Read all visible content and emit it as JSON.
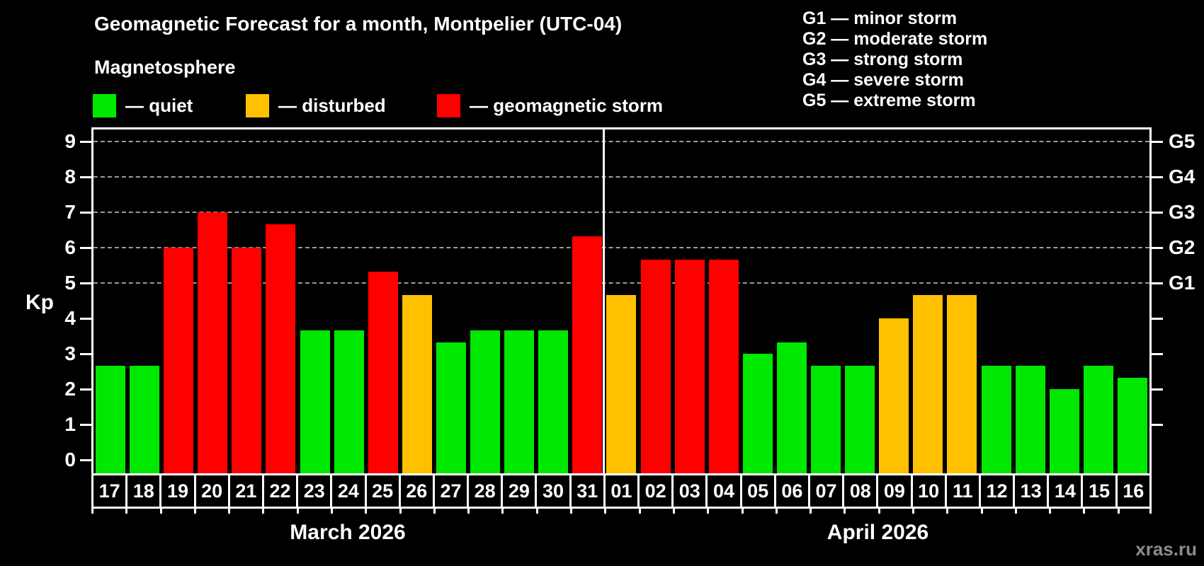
{
  "header": {
    "title": "Geomagnetic Forecast for a month, Montpelier (UTC-04)",
    "subtitle": "Magnetosphere"
  },
  "legend": {
    "items": [
      {
        "label": "— quiet",
        "key": "quiet",
        "color": "#00e800"
      },
      {
        "label": "— disturbed",
        "key": "disturbed",
        "color": "#ffc000"
      },
      {
        "label": "— geomagnetic storm",
        "key": "storm",
        "color": "#ff0000"
      }
    ]
  },
  "storm_scale": {
    "items": [
      {
        "label": "G1 — minor storm"
      },
      {
        "label": "G2 — moderate storm"
      },
      {
        "label": "G3 — strong storm"
      },
      {
        "label": "G4 — severe storm"
      },
      {
        "label": "G5 — extreme storm"
      }
    ]
  },
  "chart_data": {
    "type": "bar",
    "title": "Geomagnetic Forecast for a month, Montpelier (UTC-04)",
    "ylabel": "Kp",
    "ylim": [
      0,
      9
    ],
    "yticks": [
      0,
      1,
      2,
      3,
      4,
      5,
      6,
      7,
      8,
      9
    ],
    "gridlines_at_kp": [
      5,
      6,
      7,
      8,
      9
    ],
    "grid": "dashed horizontal lines at storm levels only",
    "legend_position": "top-left",
    "right_axis": [
      {
        "kp": 5,
        "label": "G1"
      },
      {
        "kp": 6,
        "label": "G2"
      },
      {
        "kp": 7,
        "label": "G3"
      },
      {
        "kp": 8,
        "label": "G4"
      },
      {
        "kp": 9,
        "label": "G5"
      }
    ],
    "bar_colors": {
      "quiet": "#00e800",
      "disturbed": "#ffc000",
      "storm": "#ff0000"
    },
    "months": [
      {
        "label": "March 2026",
        "days": [
          {
            "day": "17",
            "kp": 2.67,
            "status": "quiet"
          },
          {
            "day": "18",
            "kp": 2.67,
            "status": "quiet"
          },
          {
            "day": "19",
            "kp": 6.0,
            "status": "storm"
          },
          {
            "day": "20",
            "kp": 7.0,
            "status": "storm"
          },
          {
            "day": "21",
            "kp": 6.0,
            "status": "storm"
          },
          {
            "day": "22",
            "kp": 6.67,
            "status": "storm"
          },
          {
            "day": "23",
            "kp": 3.67,
            "status": "quiet"
          },
          {
            "day": "24",
            "kp": 3.67,
            "status": "quiet"
          },
          {
            "day": "25",
            "kp": 5.33,
            "status": "storm"
          },
          {
            "day": "26",
            "kp": 4.67,
            "status": "disturbed"
          },
          {
            "day": "27",
            "kp": 3.33,
            "status": "quiet"
          },
          {
            "day": "28",
            "kp": 3.67,
            "status": "quiet"
          },
          {
            "day": "29",
            "kp": 3.67,
            "status": "quiet"
          },
          {
            "day": "30",
            "kp": 3.67,
            "status": "quiet"
          },
          {
            "day": "31",
            "kp": 6.33,
            "status": "storm"
          }
        ]
      },
      {
        "label": "April 2026",
        "days": [
          {
            "day": "01",
            "kp": 4.67,
            "status": "disturbed"
          },
          {
            "day": "02",
            "kp": 5.67,
            "status": "storm"
          },
          {
            "day": "03",
            "kp": 5.67,
            "status": "storm"
          },
          {
            "day": "04",
            "kp": 5.67,
            "status": "storm"
          },
          {
            "day": "05",
            "kp": 3.0,
            "status": "quiet"
          },
          {
            "day": "06",
            "kp": 3.33,
            "status": "quiet"
          },
          {
            "day": "07",
            "kp": 2.67,
            "status": "quiet"
          },
          {
            "day": "08",
            "kp": 2.67,
            "status": "quiet"
          },
          {
            "day": "09",
            "kp": 4.0,
            "status": "disturbed"
          },
          {
            "day": "10",
            "kp": 4.67,
            "status": "disturbed"
          },
          {
            "day": "11",
            "kp": 4.67,
            "status": "disturbed"
          },
          {
            "day": "12",
            "kp": 2.67,
            "status": "quiet"
          },
          {
            "day": "13",
            "kp": 2.67,
            "status": "quiet"
          },
          {
            "day": "14",
            "kp": 2.0,
            "status": "quiet"
          },
          {
            "day": "15",
            "kp": 2.67,
            "status": "quiet"
          },
          {
            "day": "16",
            "kp": 2.33,
            "status": "quiet"
          }
        ]
      }
    ]
  },
  "watermark": "xras.ru"
}
